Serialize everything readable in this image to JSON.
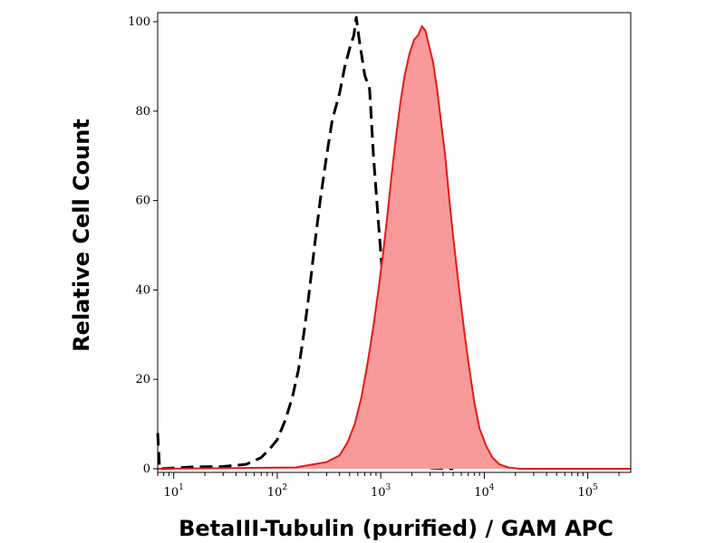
{
  "chart_data": {
    "type": "histogram",
    "xlabel": "BetaIII-Tubulin (purified) / GAM APC",
    "ylabel": "Relative Cell Count",
    "x_scale": "log",
    "xlim": [
      7,
      260000
    ],
    "ylim": [
      0,
      100
    ],
    "y_ticks": [
      0,
      20,
      40,
      60,
      80,
      100
    ],
    "x_ticks": [
      {
        "base": "10",
        "exp": "1",
        "value": 10
      },
      {
        "base": "10",
        "exp": "2",
        "value": 100
      },
      {
        "base": "10",
        "exp": "3",
        "value": 1000
      },
      {
        "base": "10",
        "exp": "4",
        "value": 10000
      },
      {
        "base": "10",
        "exp": "5",
        "value": 100000
      }
    ],
    "series": [
      {
        "style": "dashed-outline",
        "color": "#000000",
        "points": [
          [
            7,
            8
          ],
          [
            7.3,
            0
          ],
          [
            15,
            0.4
          ],
          [
            30,
            0.5
          ],
          [
            50,
            1.0
          ],
          [
            70,
            2.5
          ],
          [
            85,
            4.5
          ],
          [
            100,
            6.5
          ],
          [
            120,
            11
          ],
          [
            140,
            16
          ],
          [
            160,
            22
          ],
          [
            180,
            30
          ],
          [
            200,
            38
          ],
          [
            230,
            50
          ],
          [
            260,
            60
          ],
          [
            300,
            70
          ],
          [
            340,
            78
          ],
          [
            400,
            84
          ],
          [
            450,
            90
          ],
          [
            500,
            94
          ],
          [
            550,
            97
          ],
          [
            580,
            101
          ],
          [
            620,
            96
          ],
          [
            700,
            88
          ],
          [
            780,
            85
          ],
          [
            850,
            70
          ],
          [
            950,
            55
          ],
          [
            1050,
            42
          ],
          [
            1150,
            32
          ],
          [
            1300,
            20
          ],
          [
            1450,
            12
          ],
          [
            1600,
            7
          ],
          [
            1800,
            3
          ],
          [
            2000,
            1.2
          ],
          [
            2400,
            0.4
          ],
          [
            3000,
            0.2
          ],
          [
            5000,
            0
          ]
        ]
      },
      {
        "style": "filled",
        "color": "#e8191b",
        "fill": "#f79a99",
        "points": [
          [
            7,
            0
          ],
          [
            150,
            0.3
          ],
          [
            300,
            1.5
          ],
          [
            400,
            3
          ],
          [
            480,
            6
          ],
          [
            560,
            10
          ],
          [
            650,
            16
          ],
          [
            750,
            24
          ],
          [
            850,
            32
          ],
          [
            950,
            40
          ],
          [
            1050,
            48
          ],
          [
            1150,
            56
          ],
          [
            1250,
            64
          ],
          [
            1400,
            74
          ],
          [
            1550,
            82
          ],
          [
            1700,
            88
          ],
          [
            1900,
            93
          ],
          [
            2100,
            96
          ],
          [
            2300,
            97
          ],
          [
            2500,
            99
          ],
          [
            2700,
            98
          ],
          [
            2900,
            95
          ],
          [
            3200,
            91
          ],
          [
            3500,
            85
          ],
          [
            3800,
            78
          ],
          [
            4200,
            70
          ],
          [
            4600,
            60
          ],
          [
            5000,
            52
          ],
          [
            5600,
            42
          ],
          [
            6300,
            32
          ],
          [
            7000,
            24
          ],
          [
            8000,
            15
          ],
          [
            9000,
            9
          ],
          [
            10500,
            5
          ],
          [
            12000,
            2.5
          ],
          [
            14000,
            1
          ],
          [
            17000,
            0.3
          ],
          [
            22000,
            0
          ],
          [
            260000,
            0
          ]
        ]
      }
    ]
  }
}
